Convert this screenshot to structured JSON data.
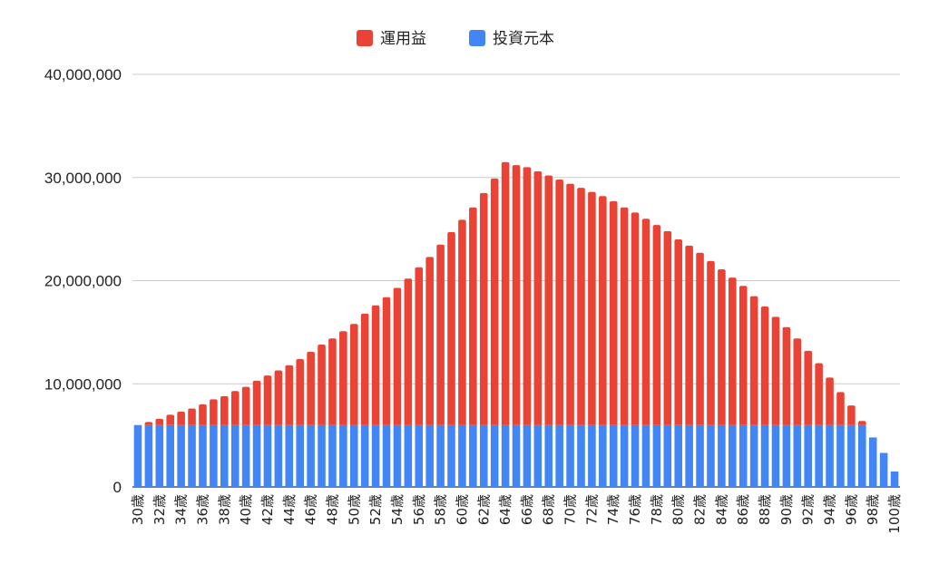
{
  "chart_data": {
    "type": "bar",
    "stacked": true,
    "title": "",
    "xlabel": "",
    "ylabel": "",
    "ylim": [
      0,
      40000000
    ],
    "y_ticks": [
      0,
      10000000,
      20000000,
      30000000,
      40000000
    ],
    "y_tick_labels": [
      "0",
      "10,000,000",
      "20,000,000",
      "30,000,000",
      "40,000,000"
    ],
    "grid": true,
    "legend_position": "top",
    "x_tick_labels_shown": [
      "30歳",
      "32歳",
      "34歳",
      "36歳",
      "38歳",
      "40歳",
      "42歳",
      "44歳",
      "46歳",
      "48歳",
      "50歳",
      "52歳",
      "54歳",
      "56歳",
      "58歳",
      "60歳",
      "62歳",
      "64歳",
      "66歳",
      "68歳",
      "70歳",
      "72歳",
      "74歳",
      "76歳",
      "78歳",
      "80歳",
      "82歳",
      "84歳",
      "86歳",
      "88歳",
      "90歳",
      "92歳",
      "94歳",
      "96歳",
      "98歳",
      "100歳"
    ],
    "categories": [
      "30歳",
      "31歳",
      "32歳",
      "33歳",
      "34歳",
      "35歳",
      "36歳",
      "37歳",
      "38歳",
      "39歳",
      "40歳",
      "41歳",
      "42歳",
      "43歳",
      "44歳",
      "45歳",
      "46歳",
      "47歳",
      "48歳",
      "49歳",
      "50歳",
      "51歳",
      "52歳",
      "53歳",
      "54歳",
      "55歳",
      "56歳",
      "57歳",
      "58歳",
      "59歳",
      "60歳",
      "61歳",
      "62歳",
      "63歳",
      "64歳",
      "65歳",
      "66歳",
      "67歳",
      "68歳",
      "69歳",
      "70歳",
      "71歳",
      "72歳",
      "73歳",
      "74歳",
      "75歳",
      "76歳",
      "77歳",
      "78歳",
      "79歳",
      "80歳",
      "81歳",
      "82歳",
      "83歳",
      "84歳",
      "85歳",
      "86歳",
      "87歳",
      "88歳",
      "89歳",
      "90歳",
      "91歳",
      "92歳",
      "93歳",
      "94歳",
      "95歳",
      "96歳",
      "97歳",
      "98歳",
      "99歳",
      "100歳"
    ],
    "series": [
      {
        "name": "運用益",
        "color": "#ea4335",
        "values": [
          0,
          300000,
          600000,
          1000000,
          1300000,
          1600000,
          2000000,
          2500000,
          2800000,
          3300000,
          3700000,
          4300000,
          4800000,
          5300000,
          5800000,
          6400000,
          7100000,
          7800000,
          8400000,
          9100000,
          9800000,
          10800000,
          11600000,
          12400000,
          13300000,
          14200000,
          15300000,
          16300000,
          17500000,
          18700000,
          19900000,
          21100000,
          22500000,
          23900000,
          25500000,
          25200000,
          25000000,
          24600000,
          24200000,
          23800000,
          23400000,
          23000000,
          22600000,
          22200000,
          21700000,
          21100000,
          20600000,
          20000000,
          19400000,
          18800000,
          18000000,
          17400000,
          16700000,
          15900000,
          15100000,
          14300000,
          13500000,
          12500000,
          11500000,
          10500000,
          9500000,
          8400000,
          7200000,
          6000000,
          4600000,
          3200000,
          1900000,
          400000,
          0,
          0,
          0
        ]
      },
      {
        "name": "投資元本",
        "color": "#4285f4",
        "values": [
          6000000,
          6000000,
          6000000,
          6000000,
          6000000,
          6000000,
          6000000,
          6000000,
          6000000,
          6000000,
          6000000,
          6000000,
          6000000,
          6000000,
          6000000,
          6000000,
          6000000,
          6000000,
          6000000,
          6000000,
          6000000,
          6000000,
          6000000,
          6000000,
          6000000,
          6000000,
          6000000,
          6000000,
          6000000,
          6000000,
          6000000,
          6000000,
          6000000,
          6000000,
          6000000,
          6000000,
          6000000,
          6000000,
          6000000,
          6000000,
          6000000,
          6000000,
          6000000,
          6000000,
          6000000,
          6000000,
          6000000,
          6000000,
          6000000,
          6000000,
          6000000,
          6000000,
          6000000,
          6000000,
          6000000,
          6000000,
          6000000,
          6000000,
          6000000,
          6000000,
          6000000,
          6000000,
          6000000,
          6000000,
          6000000,
          6000000,
          6000000,
          6000000,
          4800000,
          3300000,
          1500000
        ]
      }
    ]
  }
}
